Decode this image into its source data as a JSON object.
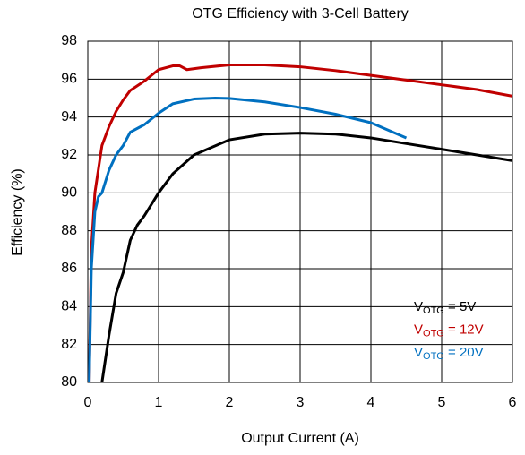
{
  "chart_data": {
    "type": "line",
    "title": "OTG Efficiency with 3-Cell Battery",
    "x_label": "Output Current (A)",
    "y_label": "Efficiency (%)",
    "xlim": [
      0,
      6
    ],
    "xticks": [
      0,
      1,
      2,
      3,
      4,
      5,
      6
    ],
    "ylim": [
      80,
      98
    ],
    "yticks": [
      80,
      82,
      84,
      86,
      88,
      90,
      92,
      94,
      96,
      98
    ],
    "grid": true,
    "legend": "lower right",
    "series": [
      {
        "name": {
          "base": "V",
          "sub": "OTG",
          "text": " = 5V"
        },
        "color": "#000000",
        "x": [
          0.2,
          0.3,
          0.4,
          0.5,
          0.6,
          0.7,
          0.8,
          1.0,
          1.2,
          1.5,
          2.0,
          2.5,
          3.0,
          3.5,
          4.0,
          4.5,
          5.0,
          5.5,
          6.0
        ],
        "values": [
          80,
          82.5,
          84.7,
          85.8,
          87.5,
          88.3,
          88.8,
          90,
          91,
          92,
          92.8,
          93.1,
          93.15,
          93.1,
          92.9,
          92.6,
          92.3,
          92,
          91.7
        ]
      },
      {
        "name": {
          "base": "V",
          "sub": "OTG",
          "text": " = 12V"
        },
        "color": "#c00000",
        "x": [
          0.02,
          0.05,
          0.1,
          0.2,
          0.3,
          0.4,
          0.5,
          0.6,
          0.8,
          1.0,
          1.2,
          1.3,
          1.4,
          1.6,
          2.0,
          2.5,
          3.0,
          3.5,
          4.0,
          4.5,
          5.0,
          5.5,
          6.0
        ],
        "values": [
          80,
          87,
          90,
          92.5,
          93.5,
          94.3,
          94.9,
          95.4,
          95.9,
          96.5,
          96.7,
          96.7,
          96.5,
          96.6,
          96.75,
          96.75,
          96.65,
          96.45,
          96.2,
          95.95,
          95.7,
          95.45,
          95.1
        ]
      },
      {
        "name": {
          "base": "V",
          "sub": "OTG",
          "text": " = 20V"
        },
        "color": "#0070c0",
        "x": [
          0.02,
          0.05,
          0.1,
          0.15,
          0.2,
          0.3,
          0.4,
          0.5,
          0.6,
          0.8,
          1.0,
          1.2,
          1.5,
          1.8,
          2.0,
          2.5,
          3.0,
          3.5,
          4.0,
          4.5
        ],
        "values": [
          80,
          86,
          89,
          89.8,
          90,
          91.2,
          92,
          92.5,
          93.2,
          93.6,
          94.2,
          94.7,
          94.95,
          95,
          94.98,
          94.8,
          94.5,
          94.15,
          93.7,
          92.9
        ]
      }
    ]
  }
}
